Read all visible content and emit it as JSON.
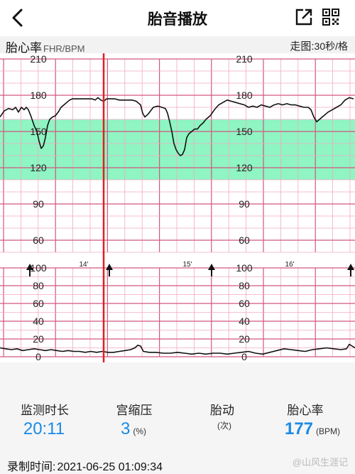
{
  "header": {
    "title": "胎音播放",
    "back_icon": "chevron-left-icon",
    "share_icon": "share-icon",
    "qr_icon": "qr-code-icon"
  },
  "chart_header": {
    "fhr_label": "胎心率",
    "fhr_unit": "FHR/BPM",
    "speed_label": "走图:",
    "speed_value": "30秒/格"
  },
  "chart_data": [
    {
      "type": "line",
      "title": "",
      "ylabel": "FHR/BPM",
      "ylim": [
        50,
        210
      ],
      "yticks": [
        210,
        180,
        150,
        120,
        90,
        60
      ],
      "normal_band": [
        110,
        160
      ],
      "band_color": "#8ef5c3",
      "series": [
        {
          "x": [
            0,
            6,
            12,
            18,
            22,
            26,
            30,
            34,
            37,
            40,
            44,
            48,
            52,
            55,
            58,
            61,
            64,
            67,
            70,
            74,
            78,
            82,
            86,
            90,
            94,
            98,
            102,
            106,
            110,
            114,
            118,
            122,
            126,
            130,
            134,
            138,
            142,
            146,
            150,
            156,
            162,
            168,
            174,
            180,
            186,
            192,
            198,
            201,
            204,
            208,
            212,
            216,
            222,
            228,
            233,
            236,
            239,
            242,
            245,
            248,
            251,
            254,
            257,
            260,
            263,
            266,
            270,
            274,
            278,
            282,
            286,
            290,
            296,
            302,
            308,
            314,
            320,
            326,
            332,
            338,
            344,
            350,
            356,
            362,
            368,
            374,
            380,
            386,
            392,
            398,
            404,
            410,
            416,
            422,
            428,
            434,
            438,
            442,
            446,
            450,
            456,
            462,
            468,
            474,
            480,
            486,
            492,
            498
          ],
          "y": [
            162,
            167,
            169,
            168,
            170,
            166,
            170,
            168,
            170,
            168,
            162,
            155,
            150,
            142,
            136,
            138,
            145,
            155,
            160,
            162,
            163,
            166,
            170,
            172,
            174,
            176,
            177,
            177,
            177,
            177,
            177,
            177,
            177,
            177,
            176,
            178,
            176,
            175,
            177,
            177,
            177,
            176,
            176,
            176,
            176,
            175,
            172,
            165,
            162,
            164,
            167,
            170,
            171,
            170,
            169,
            165,
            158,
            150,
            140,
            135,
            132,
            130,
            131,
            135,
            145,
            148,
            150,
            152,
            152,
            155,
            157,
            160,
            163,
            168,
            172,
            174,
            176,
            175,
            174,
            173,
            172,
            170,
            171,
            170,
            172,
            171,
            170,
            172,
            173,
            172,
            173,
            172,
            172,
            171,
            170,
            170,
            168,
            162,
            158,
            160,
            163,
            166,
            168,
            170,
            172,
            176,
            178,
            177
          ]
        }
      ]
    },
    {
      "type": "line",
      "title": "",
      "ylim": [
        0,
        100
      ],
      "yticks": [
        100,
        80,
        60,
        40,
        20,
        0
      ],
      "minute_labels": [
        "14'",
        "15'",
        "16'"
      ],
      "fetal_movement_markers": [
        42,
        154,
        298,
        494
      ],
      "series": [
        {
          "x": [
            0,
            8,
            16,
            24,
            32,
            40,
            48,
            56,
            64,
            72,
            80,
            88,
            96,
            104,
            112,
            120,
            128,
            136,
            144,
            152,
            160,
            168,
            176,
            184,
            190,
            194,
            198,
            202,
            210,
            220,
            230,
            240,
            250,
            260,
            270,
            280,
            290,
            300,
            310,
            320,
            330,
            340,
            350,
            360,
            370,
            380,
            390,
            400,
            410,
            420,
            430,
            440,
            450,
            460,
            470,
            480,
            488,
            492,
            496,
            500
          ],
          "y": [
            10,
            9,
            8,
            9,
            7,
            8,
            9,
            8,
            7,
            8,
            7,
            6,
            7,
            6,
            6,
            5,
            6,
            5,
            6,
            5,
            5,
            6,
            7,
            8,
            10,
            13,
            12,
            6,
            5,
            5,
            4,
            4,
            5,
            4,
            3,
            4,
            3,
            4,
            4,
            3,
            4,
            5,
            6,
            4,
            3,
            5,
            7,
            9,
            8,
            7,
            6,
            8,
            9,
            10,
            9,
            8,
            9,
            14,
            12,
            10
          ]
        }
      ]
    }
  ],
  "stats": {
    "duration": {
      "label": "监测时长",
      "value": "20:11"
    },
    "contraction": {
      "label": "宫缩压",
      "value": "3",
      "unit": "(%)"
    },
    "movement": {
      "label": "胎动",
      "unit": "(次)"
    },
    "fhr": {
      "label": "胎心率",
      "value": "177",
      "unit": "(BPM)"
    }
  },
  "record": {
    "label": "录制时间:",
    "value": "2021-06-25 01:09:34"
  },
  "watermark": "@山风生涯记",
  "colors": {
    "accent": "#1a8ae6",
    "playhead": "#e02020",
    "grid_major": "#d2577e",
    "grid_minor": "#f2aac0"
  }
}
